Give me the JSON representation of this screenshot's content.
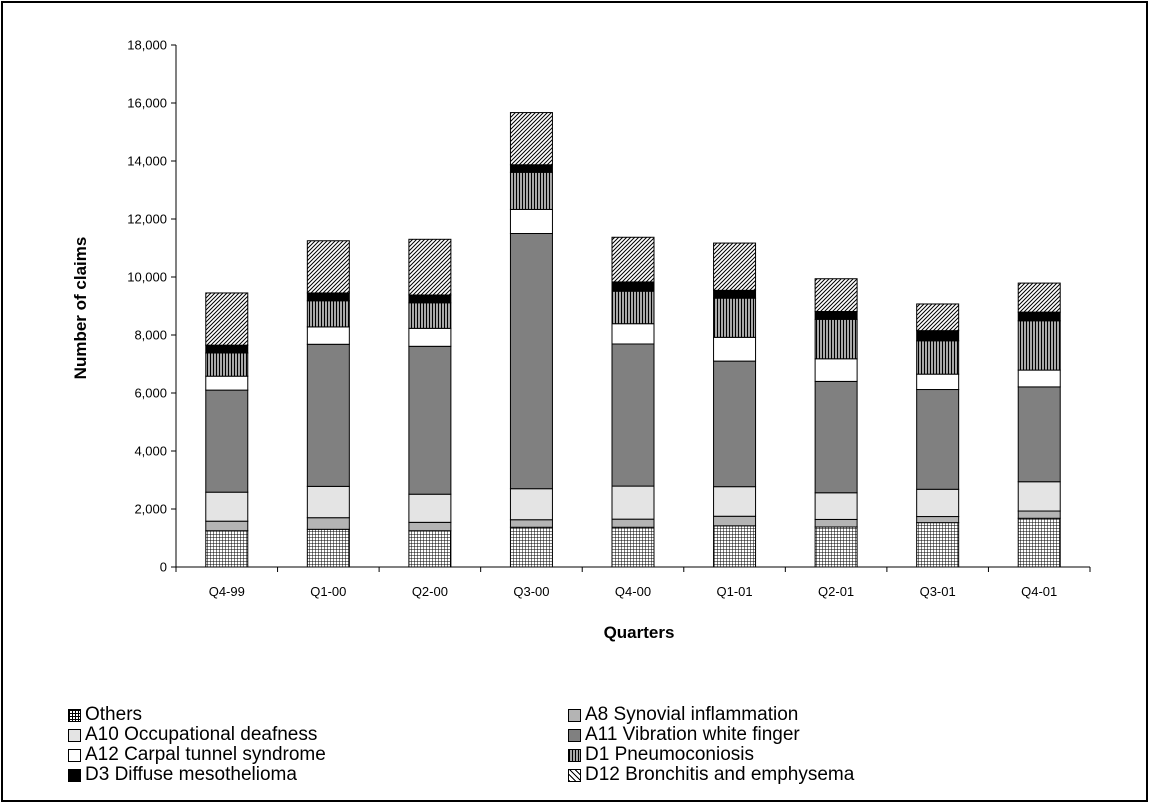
{
  "chart_data": {
    "type": "bar",
    "stacked": true,
    "title": "",
    "xlabel": "Quarters",
    "ylabel": "Number of claims",
    "ylim": [
      0,
      18000
    ],
    "ytick_step": 2000,
    "ytick_labels": [
      "0",
      "2,000",
      "4,000",
      "6,000",
      "8,000",
      "10,000",
      "12,000",
      "14,000",
      "16,000",
      "18,000"
    ],
    "grid": false,
    "legend_position": "bottom",
    "categories": [
      "Q4-99",
      "Q1-00",
      "Q2-00",
      "Q3-00",
      "Q4-00",
      "Q1-01",
      "Q2-01",
      "Q3-01",
      "Q4-01"
    ],
    "series": [
      {
        "name": "Others",
        "pattern": "grid",
        "values": [
          1250,
          1300,
          1250,
          1370,
          1370,
          1420,
          1380,
          1530,
          1680
        ]
      },
      {
        "name": "A8 Synovial inflammation",
        "pattern": "solid-light-gray",
        "values": [
          330,
          400,
          290,
          260,
          280,
          330,
          260,
          210,
          250
        ]
      },
      {
        "name": "A10 Occupational deafness",
        "pattern": "solid-pale-gray",
        "values": [
          1000,
          1080,
          970,
          1070,
          1140,
          1020,
          920,
          940,
          1010
        ]
      },
      {
        "name": "A11 Vibration white finger",
        "pattern": "solid-dark-gray",
        "values": [
          3520,
          4900,
          5100,
          8800,
          4900,
          4330,
          3840,
          3440,
          3270
        ]
      },
      {
        "name": "A12 Carpal tunnel syndrome",
        "pattern": "solid-white",
        "values": [
          480,
          600,
          620,
          830,
          700,
          820,
          780,
          530,
          580
        ]
      },
      {
        "name": "D1 Pneumoconiosis",
        "pattern": "vertical-lines",
        "values": [
          800,
          900,
          880,
          1280,
          1120,
          1350,
          1360,
          1150,
          1700
        ]
      },
      {
        "name": "D3 Diffuse mesothelioma",
        "pattern": "solid-black",
        "values": [
          270,
          270,
          270,
          260,
          320,
          270,
          270,
          350,
          300
        ]
      },
      {
        "name": "D12 Bronchitis and emphysema",
        "pattern": "diagonal-lines",
        "values": [
          1800,
          1800,
          1920,
          1800,
          1540,
          1630,
          1130,
          920,
          1000
        ]
      }
    ]
  }
}
